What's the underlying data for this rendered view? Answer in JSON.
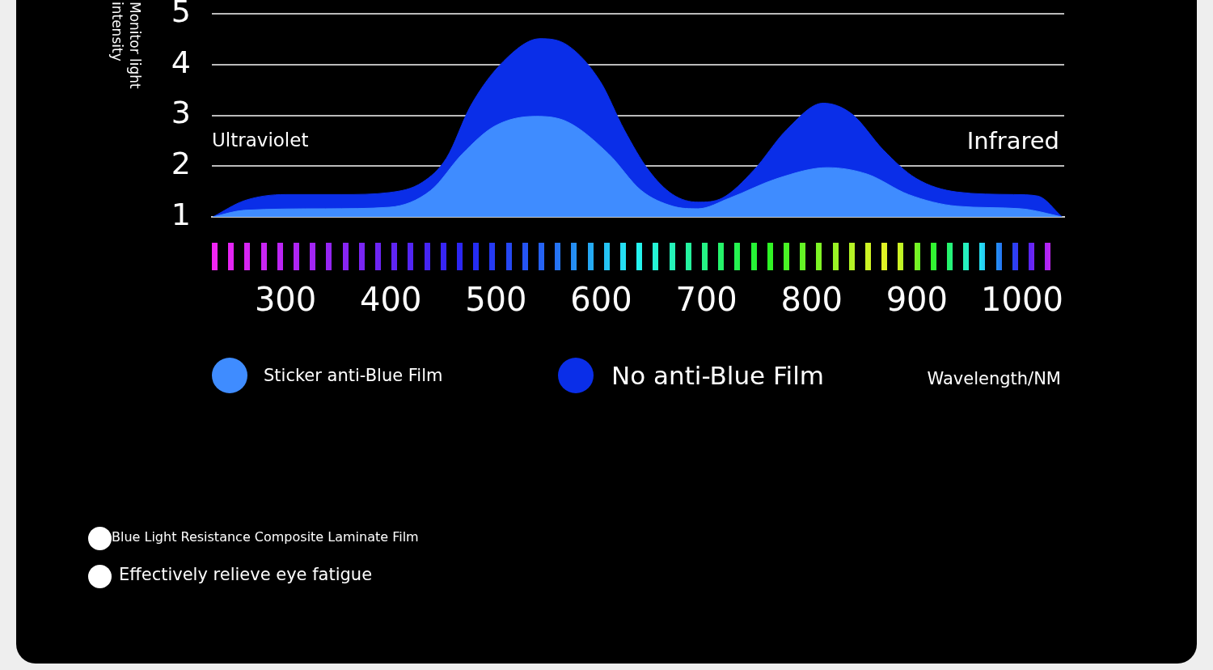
{
  "chart_data": {
    "type": "area",
    "ylabel": "Monitor light intensity",
    "xlabel": "Wavelength/NM",
    "xlim": [
      230,
      1040
    ],
    "xticks": [
      300,
      400,
      500,
      600,
      700,
      800,
      900,
      1000
    ],
    "ylim": [
      1,
      5
    ],
    "yticks": [
      1,
      2,
      3,
      4,
      5
    ],
    "grid": "y",
    "legend": "bottom",
    "annotations": [
      "Ultraviolet",
      "Infrared",
      "Blue Light Resistance Composite Laminate Film",
      "Effectively relieve eye fatigue"
    ],
    "series": [
      {
        "name": "Sticker anti-Blue Film",
        "color": "#3f8cff",
        "x": [
          231,
          261,
          338,
          399,
          438,
          468,
          499,
          538,
          568,
          607,
          638,
          668,
          692,
          722,
          768,
          815,
          853,
          892,
          938,
          999,
          1038
        ],
        "values": [
          1.0,
          1.13,
          1.16,
          1.19,
          1.52,
          2.24,
          2.79,
          2.98,
          2.87,
          2.24,
          1.52,
          1.21,
          1.16,
          1.37,
          1.76,
          1.97,
          1.84,
          1.44,
          1.21,
          1.16,
          1.0
        ]
      },
      {
        "name": "No anti-Blue Film",
        "color": "#0a2ee8",
        "x": [
          231,
          261,
          300,
          353,
          399,
          430,
          453,
          476,
          507,
          542,
          568,
          599,
          622,
          645,
          668,
          692,
          715,
          745,
          776,
          811,
          838,
          868,
          899,
          938,
          992,
          1015,
          1038
        ],
        "values": [
          1.0,
          1.32,
          1.44,
          1.44,
          1.48,
          1.68,
          2.16,
          3.19,
          4.06,
          4.51,
          4.38,
          3.67,
          2.71,
          1.92,
          1.44,
          1.29,
          1.37,
          1.92,
          2.71,
          3.24,
          3.03,
          2.32,
          1.76,
          1.49,
          1.44,
          1.41,
          1.0
        ]
      }
    ]
  }
}
